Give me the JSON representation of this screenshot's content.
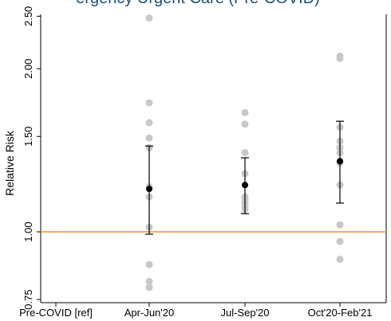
{
  "chart_data": {
    "type": "scatter",
    "title": "ergency Urgent Care (Pre-COVID)",
    "ylabel": "Relative Risk",
    "xlabel": "",
    "y_scale": "log",
    "ylim": [
      0.74,
      2.52
    ],
    "y_ticks": [
      {
        "value": 0.75,
        "label": "0.75"
      },
      {
        "value": 1.0,
        "label": "1.00"
      },
      {
        "value": 1.5,
        "label": "1.50"
      },
      {
        "value": 2.0,
        "label": "2.00"
      },
      {
        "value": 2.5,
        "label": "2.50"
      }
    ],
    "categories": [
      "Pre-COVID [ref]",
      "Apr-Jun'20",
      "Jul-Sep'20",
      "Oct'20-Feb'21"
    ],
    "reference_line": {
      "y": 1.0,
      "color": "#f0a020"
    },
    "colors": {
      "points": "#c8c8c8",
      "estimate": "#000000"
    },
    "points": [
      {
        "category": 1,
        "values": [
          2.48,
          1.73,
          1.59,
          1.49,
          1.43,
          1.21,
          1.16,
          1.02,
          0.87,
          0.81,
          0.79
        ]
      },
      {
        "category": 2,
        "values": [
          1.66,
          1.58,
          1.4,
          1.28,
          1.16,
          1.14,
          1.13,
          1.11,
          1.1
        ]
      },
      {
        "category": 3,
        "values": [
          2.11,
          2.09,
          1.56,
          1.47,
          1.43,
          1.4,
          1.34,
          1.22,
          1.03,
          0.96,
          0.89
        ]
      }
    ],
    "estimates": [
      {
        "category": 1,
        "value": 1.2,
        "lower": 0.99,
        "upper": 1.44
      },
      {
        "category": 2,
        "value": 1.22,
        "lower": 1.08,
        "upper": 1.37
      },
      {
        "category": 3,
        "value": 1.35,
        "lower": 1.13,
        "upper": 1.6
      }
    ]
  }
}
